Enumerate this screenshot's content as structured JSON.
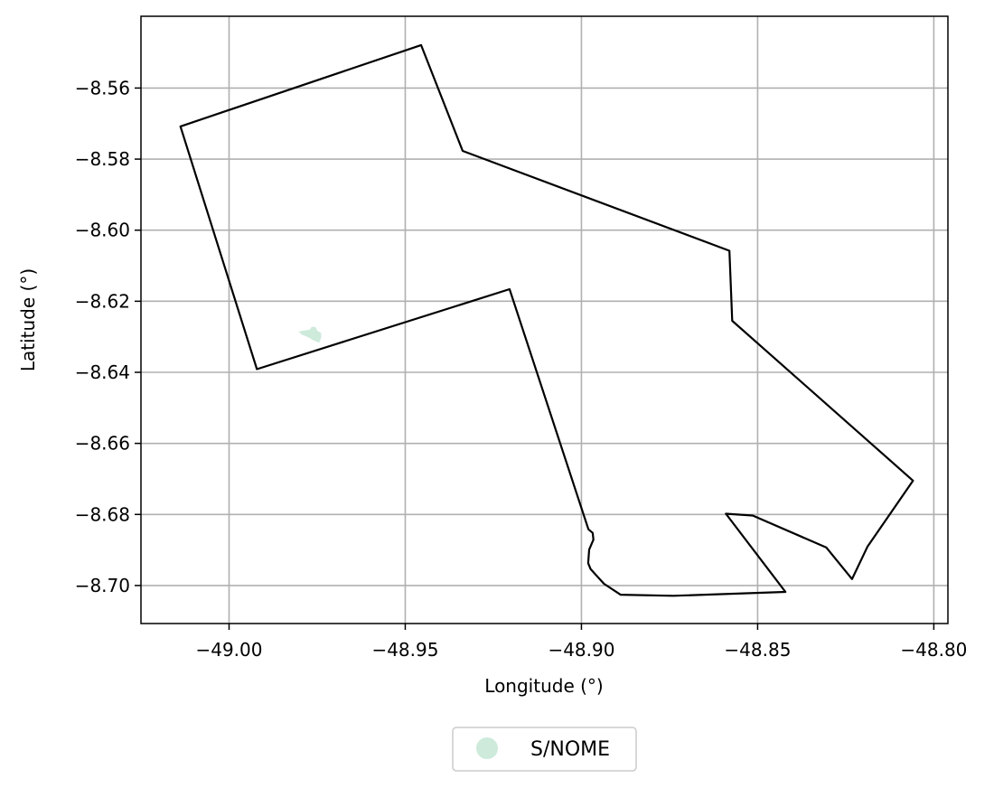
{
  "chart_data": {
    "type": "map",
    "xlabel": "Longitude (°)",
    "ylabel": "Latitude (°)",
    "xlim": [
      -49.025,
      -48.796
    ],
    "ylim": [
      -8.7107,
      -8.5398
    ],
    "grid": true,
    "x_ticks": [
      -49.0,
      -48.95,
      -48.9,
      -48.85,
      -48.8
    ],
    "x_tick_labels": [
      "−49.00",
      "−48.95",
      "−48.90",
      "−48.85",
      "−48.80"
    ],
    "y_ticks": [
      -8.56,
      -8.58,
      -8.6,
      -8.62,
      -8.64,
      -8.66,
      -8.68,
      -8.7
    ],
    "y_tick_labels": [
      "−8.56",
      "−8.58",
      "−8.60",
      "−8.62",
      "−8.64",
      "−8.66",
      "−8.68",
      "−8.70"
    ],
    "boundary": [
      [
        -48.9455,
        -8.5479
      ],
      [
        -48.9337,
        -8.5777
      ],
      [
        -48.858,
        -8.6058
      ],
      [
        -48.8572,
        -8.6255
      ],
      [
        -48.8059,
        -8.6705
      ],
      [
        -48.8188,
        -8.689
      ],
      [
        -48.8232,
        -8.6982
      ],
      [
        -48.8305,
        -8.6893
      ],
      [
        -48.8514,
        -8.6803
      ],
      [
        -48.859,
        -8.6798
      ],
      [
        -48.8421,
        -8.7018
      ],
      [
        -48.8739,
        -8.7029
      ],
      [
        -48.8889,
        -8.7026
      ],
      [
        -48.8936,
        -8.6995
      ],
      [
        -48.8974,
        -8.6954
      ],
      [
        -48.8981,
        -8.6937
      ],
      [
        -48.8978,
        -8.6899
      ],
      [
        -48.8966,
        -8.6871
      ],
      [
        -48.8968,
        -8.6852
      ],
      [
        -48.898,
        -8.6842
      ],
      [
        -48.9204,
        -8.6166
      ],
      [
        -48.9921,
        -8.6391
      ],
      [
        -49.0138,
        -8.5708
      ]
    ],
    "features": [
      {
        "name": "S/NOME",
        "color": "#cdeadb",
        "polygon": [
          [
            -48.9765,
            -8.6273
          ],
          [
            -48.9755,
            -8.6274
          ],
          [
            -48.975,
            -8.6285
          ],
          [
            -48.974,
            -8.6289
          ],
          [
            -48.974,
            -8.6302
          ],
          [
            -48.9745,
            -8.6315
          ],
          [
            -48.976,
            -8.6309
          ],
          [
            -48.9775,
            -8.63
          ],
          [
            -48.9792,
            -8.6293
          ],
          [
            -48.98,
            -8.6286
          ],
          [
            -48.9782,
            -8.6283
          ],
          [
            -48.977,
            -8.6281
          ]
        ]
      }
    ],
    "legend": {
      "placement": "bottom-center",
      "entries": [
        {
          "label": "S/NOME",
          "color": "#cdeadb"
        }
      ]
    }
  }
}
